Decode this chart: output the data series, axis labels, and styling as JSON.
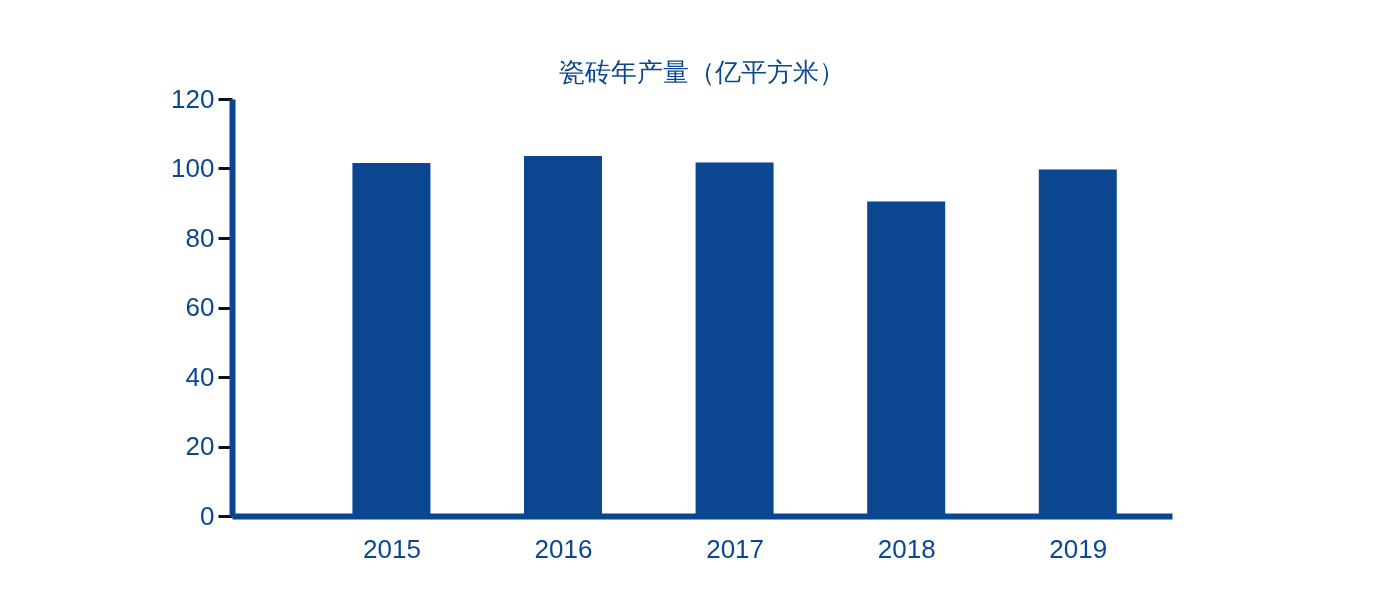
{
  "chart_data": {
    "type": "bar",
    "title": "瓷砖年产量（亿平方米）",
    "categories": [
      "2015",
      "2016",
      "2017",
      "2018",
      "2019"
    ],
    "values": [
      101.6,
      103.6,
      101.7,
      90.5,
      99.7
    ],
    "color": "#0b4790",
    "ylim": [
      0,
      120
    ],
    "yticks": [
      0,
      20,
      40,
      60,
      80,
      100,
      120
    ],
    "grid": false
  }
}
